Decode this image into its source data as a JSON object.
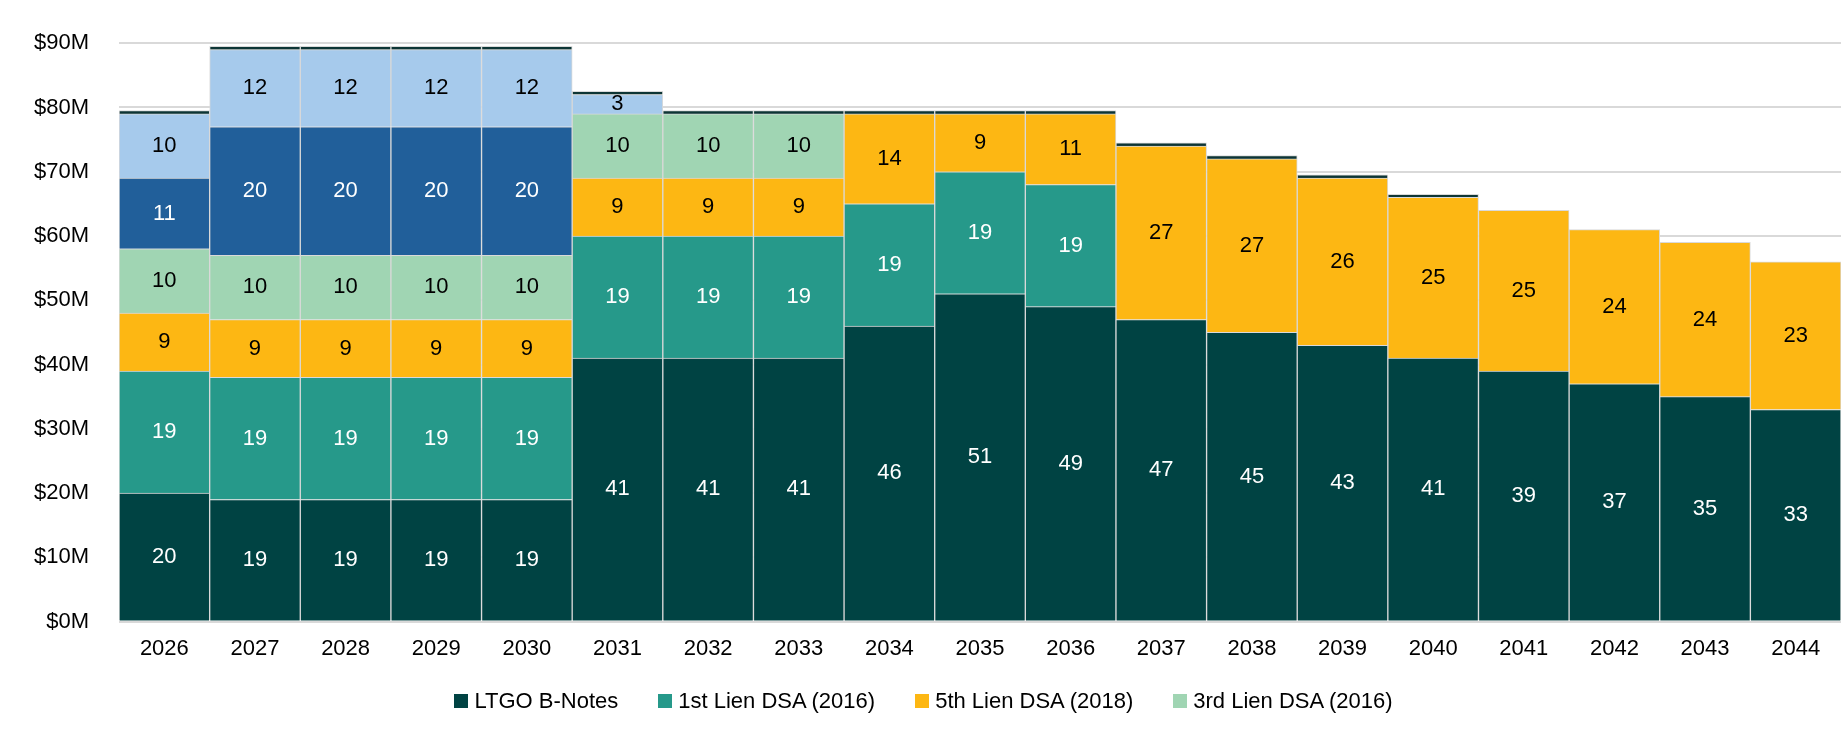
{
  "chart_data": {
    "type": "bar",
    "stacked": true,
    "categories": [
      "2026",
      "2027",
      "2028",
      "2029",
      "2030",
      "2031",
      "2032",
      "2033",
      "2034",
      "2035",
      "2036",
      "2037",
      "2038",
      "2039",
      "2040",
      "2041",
      "2042",
      "2043",
      "2044"
    ],
    "ylim": [
      0,
      90
    ],
    "yticks": [
      {
        "value": 0,
        "label": "$0M"
      },
      {
        "value": 10,
        "label": "$10M"
      },
      {
        "value": 20,
        "label": "$20M"
      },
      {
        "value": 30,
        "label": "$30M"
      },
      {
        "value": 40,
        "label": "$40M"
      },
      {
        "value": 50,
        "label": "$50M"
      },
      {
        "value": 60,
        "label": "$60M"
      },
      {
        "value": 70,
        "label": "$70M"
      },
      {
        "value": 80,
        "label": "$80M"
      },
      {
        "value": 90,
        "label": "$90M"
      }
    ],
    "grid": "y",
    "legend": "bottom",
    "series": [
      {
        "name": "LTGO B-Notes",
        "color": "#004343",
        "values": [
          20,
          19,
          19,
          19,
          19,
          41,
          41,
          41,
          46,
          51,
          49,
          47,
          45,
          43,
          41,
          39,
          37,
          35,
          33
        ],
        "value_labels": [
          "20",
          "19",
          "19",
          "19",
          "19",
          "41",
          "41",
          "41",
          "46",
          "51",
          "49",
          "47",
          "45",
          "43",
          "41",
          "39",
          "37",
          "35",
          "33"
        ]
      },
      {
        "name": "1st Lien DSA (2016)",
        "color": "#26998a",
        "values": [
          19,
          19,
          19,
          19,
          19,
          19,
          19,
          19,
          19,
          19,
          19,
          null,
          null,
          null,
          null,
          null,
          null,
          null,
          null
        ],
        "value_labels": [
          "19",
          "19",
          "19",
          "19",
          "19",
          "19",
          "19",
          "19",
          "19",
          "19",
          "19",
          null,
          null,
          null,
          null,
          null,
          null,
          null,
          null
        ]
      },
      {
        "name": "5th Lien DSA (2018)",
        "color": "#fdb713",
        "values": [
          9,
          9,
          9,
          9,
          9,
          9,
          9,
          9,
          14,
          9,
          11,
          27,
          27,
          26,
          25,
          25,
          24,
          24,
          23
        ],
        "value_labels": [
          "9",
          "9",
          "9",
          "9",
          "9",
          "9",
          "9",
          "9",
          "14",
          "9",
          "11",
          "27",
          "27",
          "26",
          "25",
          "25",
          "24",
          "24",
          "23"
        ]
      },
      {
        "name": "3rd Lien DSA (2016)",
        "color": "#a0d5b3",
        "values": [
          10,
          10,
          10,
          10,
          10,
          10,
          10,
          10,
          null,
          null,
          null,
          null,
          null,
          null,
          null,
          null,
          null,
          null,
          null
        ],
        "value_labels": [
          "10",
          "10",
          "10",
          "10",
          "10",
          "10",
          "10",
          "10",
          null,
          null,
          null,
          null,
          null,
          null,
          null,
          null,
          null,
          null,
          null
        ]
      },
      {
        "color": "#215f9a",
        "values": [
          11,
          20,
          20,
          20,
          20,
          null,
          null,
          null,
          null,
          null,
          null,
          null,
          null,
          null,
          null,
          null,
          null,
          null,
          null
        ],
        "value_labels": [
          "11",
          "20",
          "20",
          "20",
          "20",
          null,
          null,
          null,
          null,
          null,
          null,
          null,
          null,
          null,
          null,
          null,
          null,
          null,
          null
        ]
      },
      {
        "color": "#a6caec",
        "values": [
          10,
          12,
          12,
          12,
          12,
          3,
          null,
          null,
          null,
          null,
          null,
          null,
          null,
          null,
          null,
          null,
          null,
          null,
          null
        ],
        "value_labels": [
          "10",
          "12",
          "12",
          "12",
          "12",
          "3",
          null,
          null,
          null,
          null,
          null,
          null,
          null,
          null,
          null,
          null,
          null,
          null,
          null
        ]
      },
      {
        "color": "#0d3535",
        "values": [
          0.5,
          0.5,
          0.5,
          0.5,
          0.5,
          0.5,
          0.5,
          0.5,
          0.5,
          0.5,
          0.5,
          0.5,
          0.5,
          0.5,
          0.5,
          null,
          null,
          null,
          null
        ]
      }
    ]
  }
}
